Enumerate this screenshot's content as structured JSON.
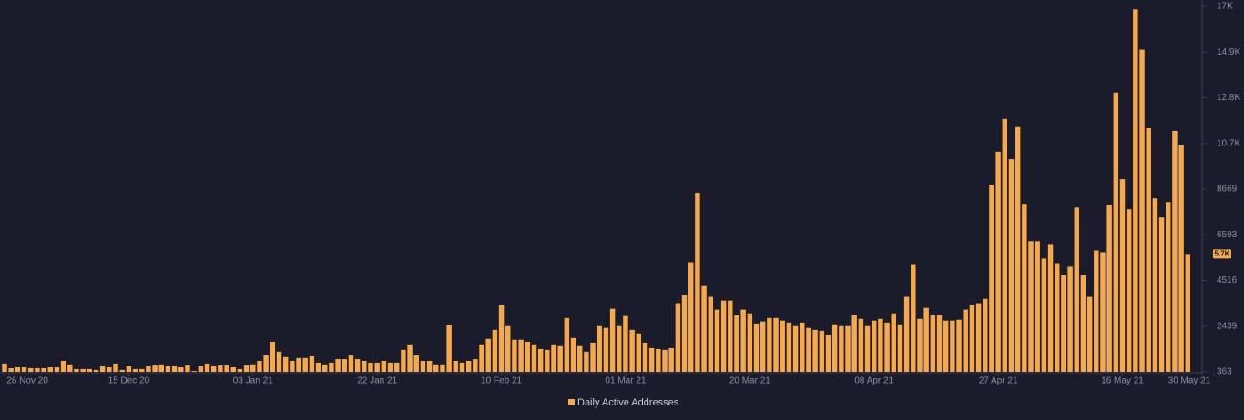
{
  "chart_data": {
    "type": "bar",
    "series": [
      {
        "name": "Daily Active Addresses",
        "color": "#f5a94c",
        "values": [
          740,
          530,
          570,
          570,
          530,
          530,
          530,
          570,
          570,
          860,
          700,
          490,
          490,
          490,
          450,
          610,
          570,
          740,
          450,
          610,
          490,
          490,
          610,
          650,
          700,
          610,
          610,
          570,
          650,
          400,
          610,
          740,
          610,
          650,
          650,
          570,
          490,
          650,
          700,
          860,
          1110,
          1730,
          1280,
          1030,
          860,
          990,
          990,
          1070,
          780,
          700,
          780,
          940,
          940,
          1110,
          940,
          860,
          780,
          780,
          860,
          780,
          780,
          1360,
          1610,
          1110,
          860,
          860,
          700,
          700,
          2480,
          860,
          780,
          860,
          940,
          1610,
          1860,
          2270,
          3390,
          2440,
          1820,
          1820,
          1730,
          1610,
          1400,
          1360,
          1610,
          1530,
          2810,
          1900,
          1530,
          1280,
          1690,
          2440,
          2360,
          3230,
          2440,
          2900,
          2270,
          2110,
          1690,
          1440,
          1400,
          1360,
          1440,
          3480,
          3850,
          5340,
          8500,
          4260,
          3770,
          3190,
          3600,
          3600,
          2940,
          3190,
          3020,
          2560,
          2650,
          2810,
          2810,
          2690,
          2600,
          2440,
          2600,
          2360,
          2270,
          2230,
          2020,
          2520,
          2440,
          2440,
          2940,
          2770,
          2440,
          2690,
          2770,
          2600,
          3020,
          2520,
          3770,
          5260,
          2770,
          3270,
          2940,
          2940,
          2690,
          2690,
          2730,
          3190,
          3390,
          3480,
          3680,
          8870,
          10370,
          11860,
          10030,
          11490,
          8000,
          6300,
          6300,
          5510,
          6170,
          5300,
          4760,
          5140,
          7830,
          4760,
          3770,
          5880,
          5800,
          7960,
          13060,
          9120,
          7750,
          16840,
          15010,
          11440,
          8250,
          7380,
          8080,
          11320,
          10660,
          5720
        ],
        "value_labels": [
          null,
          null,
          null,
          null,
          null,
          null,
          null,
          null,
          null,
          null,
          null,
          null,
          null,
          null,
          null,
          null,
          null,
          null,
          null,
          null,
          null,
          null,
          null,
          null,
          null,
          null,
          null,
          null,
          null,
          null,
          null,
          null,
          null,
          null,
          null,
          null,
          null,
          null,
          null,
          null,
          null,
          null,
          null,
          null,
          null,
          null,
          null,
          null,
          null,
          null,
          null,
          null,
          null,
          null,
          null,
          null,
          null,
          null,
          null,
          null,
          null,
          null,
          null,
          null,
          null,
          null,
          null,
          null,
          null,
          null,
          null,
          null,
          null,
          null,
          null,
          null,
          null,
          null,
          null,
          null,
          null,
          null,
          null,
          null,
          null,
          null,
          null,
          null,
          null,
          null,
          null,
          null,
          null,
          null,
          null,
          null,
          null,
          null,
          null,
          null,
          null,
          null,
          null,
          null,
          null,
          null,
          null,
          null,
          null,
          null,
          null,
          null,
          null,
          null,
          null,
          null,
          null,
          null,
          null,
          null,
          null,
          null,
          null,
          null,
          null,
          null,
          null,
          null,
          null,
          null,
          null,
          null,
          null,
          null,
          null,
          null,
          null,
          null,
          null,
          null,
          null,
          null,
          null,
          null,
          null,
          null,
          null,
          null,
          null,
          null,
          null,
          null,
          null,
          null,
          null,
          null,
          null,
          null,
          null,
          null,
          null,
          null,
          null,
          null,
          null,
          null,
          null,
          null,
          null,
          null,
          null,
          null,
          null,
          null,
          null,
          null,
          null,
          null,
          null,
          null,
          null,
          "5.7K"
        ]
      }
    ],
    "xlim": [
      0,
      185
    ],
    "xticks": [
      {
        "value": 0,
        "label": "26 Nov 20"
      },
      {
        "value": 19,
        "label": "15 Dec 20"
      },
      {
        "value": 38,
        "label": "03 Jan 21"
      },
      {
        "value": 57,
        "label": "22 Jan 21"
      },
      {
        "value": 76,
        "label": "10 Feb 21"
      },
      {
        "value": 95,
        "label": "01 Mar 21"
      },
      {
        "value": 114,
        "label": "20 Mar 21"
      },
      {
        "value": 133,
        "label": "08 Apr 21"
      },
      {
        "value": 152,
        "label": "27 Apr 21"
      },
      {
        "value": 171,
        "label": "16 May 21"
      },
      {
        "value": 185,
        "label": "30 May 21"
      }
    ],
    "ylim": [
      363,
      16976
    ],
    "yticks": [
      363,
      2439,
      4516,
      6593,
      8669,
      {
        "value": 10746,
        "label": "10.7K"
      },
      {
        "value": 12823,
        "label": "12.8K"
      },
      {
        "value": 14899,
        "label": "14.9K"
      },
      {
        "value": 16976,
        "label": "17K"
      }
    ]
  }
}
